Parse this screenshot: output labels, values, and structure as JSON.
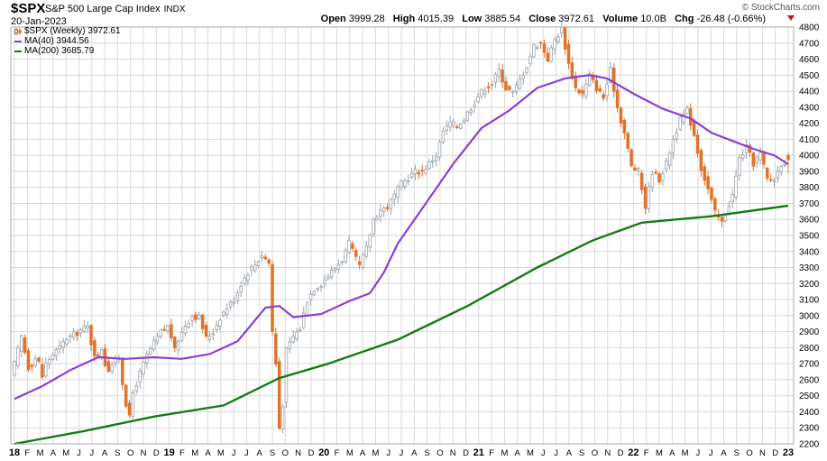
{
  "header": {
    "symbol": "$SPX",
    "name": "S&P 500 Large Cap Index",
    "exchange": "INDX",
    "date": "20-Jan-2023",
    "open_label": "Open",
    "open": "3999.28",
    "high_label": "High",
    "high": "4015.39",
    "low_label": "Low",
    "low": "3885.54",
    "close_label": "Close",
    "close": "3972.61",
    "volume_label": "Volume",
    "volume": "10.0B",
    "chg_label": "Chg",
    "chg": "-26.48 (-0.66%)",
    "brand": "© StockCharts.com"
  },
  "legend": {
    "price": "$SPX (Weekly) 3972.61",
    "ma40": "MA(40) 3944.56",
    "ma200": "MA(200) 3685.79"
  },
  "colors": {
    "up": "#9aa3ad",
    "down": "#e1722a",
    "ma40": "#8c3fd1",
    "ma200": "#157a15",
    "grid": "#d9d9d9"
  },
  "chart_data": {
    "type": "candlestick",
    "interval": "weekly",
    "ylim": [
      2200,
      4800
    ],
    "yticks": [
      2200,
      2300,
      2400,
      2500,
      2600,
      2700,
      2800,
      2900,
      3000,
      3100,
      3200,
      3300,
      3400,
      3500,
      3600,
      3700,
      3800,
      3900,
      4000,
      4100,
      4200,
      4300,
      4400,
      4500,
      4600,
      4700,
      4800
    ],
    "xticks": [
      "18",
      "F",
      "M",
      "A",
      "M",
      "J",
      "J",
      "A",
      "S",
      "O",
      "N",
      "D",
      "19",
      "F",
      "M",
      "A",
      "M",
      "J",
      "J",
      "A",
      "S",
      "O",
      "N",
      "D",
      "20",
      "F",
      "M",
      "A",
      "M",
      "J",
      "J",
      "A",
      "S",
      "O",
      "N",
      "D",
      "21",
      "F",
      "M",
      "A",
      "M",
      "J",
      "J",
      "A",
      "S",
      "O",
      "N",
      "D",
      "22",
      "F",
      "M",
      "A",
      "M",
      "J",
      "J",
      "A",
      "S",
      "O",
      "N",
      "D",
      "23"
    ],
    "price_path": [
      [
        0,
        2700
      ],
      [
        2,
        2870
      ],
      [
        4.3,
        2650
      ],
      [
        5,
        2700
      ],
      [
        6.5,
        2750
      ],
      [
        8,
        2620
      ],
      [
        9,
        2700
      ],
      [
        11,
        2760
      ],
      [
        13,
        2800
      ],
      [
        15,
        2860
      ],
      [
        17,
        2880
      ],
      [
        19,
        2910
      ],
      [
        21,
        2930
      ],
      [
        22.5,
        2780
      ],
      [
        24,
        2740
      ],
      [
        25,
        2800
      ],
      [
        26.5,
        2650
      ],
      [
        28,
        2700
      ],
      [
        30,
        2740
      ],
      [
        31.5,
        2500
      ],
      [
        33,
        2360
      ],
      [
        34,
        2520
      ],
      [
        36,
        2640
      ],
      [
        38,
        2750
      ],
      [
        40,
        2830
      ],
      [
        42,
        2900
      ],
      [
        44,
        2930
      ],
      [
        45,
        2870
      ],
      [
        46,
        2780
      ],
      [
        47,
        2850
      ],
      [
        49,
        2940
      ],
      [
        51,
        3000
      ],
      [
        53,
        2990
      ],
      [
        55,
        2860
      ],
      [
        57,
        2900
      ],
      [
        59,
        2990
      ],
      [
        61,
        3050
      ],
      [
        63,
        3100
      ],
      [
        65,
        3200
      ],
      [
        67,
        3270
      ],
      [
        69,
        3320
      ],
      [
        71,
        3380
      ],
      [
        73,
        3330
      ],
      [
        74,
        2900
      ],
      [
        75,
        2700
      ],
      [
        76,
        2300
      ],
      [
        77,
        2450
      ],
      [
        78,
        2780
      ],
      [
        80,
        2870
      ],
      [
        82,
        2920
      ],
      [
        84,
        3100
      ],
      [
        86,
        3170
      ],
      [
        88,
        3200
      ],
      [
        90,
        3250
      ],
      [
        92,
        3300
      ],
      [
        94,
        3350
      ],
      [
        96,
        3450
      ],
      [
        98,
        3350
      ],
      [
        99,
        3310
      ],
      [
        101,
        3420
      ],
      [
        103,
        3600
      ],
      [
        105,
        3660
      ],
      [
        107,
        3680
      ],
      [
        109,
        3750
      ],
      [
        111,
        3820
      ],
      [
        113,
        3860
      ],
      [
        115,
        3900
      ],
      [
        117,
        3900
      ],
      [
        119,
        3950
      ],
      [
        121,
        4000
      ],
      [
        123,
        4150
      ],
      [
        125,
        4200
      ],
      [
        127,
        4180
      ],
      [
        129,
        4230
      ],
      [
        131,
        4300
      ],
      [
        133,
        4370
      ],
      [
        135,
        4420
      ],
      [
        137,
        4450
      ],
      [
        139,
        4530
      ],
      [
        141,
        4420
      ],
      [
        143,
        4390
      ],
      [
        145,
        4470
      ],
      [
        147,
        4560
      ],
      [
        149,
        4680
      ],
      [
        151,
        4700
      ],
      [
        153,
        4600
      ],
      [
        155,
        4720
      ],
      [
        157,
        4790
      ],
      [
        159,
        4570
      ],
      [
        161,
        4420
      ],
      [
        163,
        4380
      ],
      [
        165,
        4500
      ],
      [
        167,
        4420
      ],
      [
        169,
        4360
      ],
      [
        171,
        4530
      ],
      [
        173,
        4300
      ],
      [
        175,
        4140
      ],
      [
        177,
        3930
      ],
      [
        179,
        3900
      ],
      [
        181,
        3680
      ],
      [
        183,
        3900
      ],
      [
        185,
        3850
      ],
      [
        187,
        3950
      ],
      [
        189,
        4100
      ],
      [
        191,
        4220
      ],
      [
        193,
        4280
      ],
      [
        195,
        4130
      ],
      [
        197,
        3920
      ],
      [
        199,
        3790
      ],
      [
        201,
        3640
      ],
      [
        203,
        3580
      ],
      [
        204,
        3640
      ],
      [
        206,
        3750
      ],
      [
        208,
        3980
      ],
      [
        210,
        4050
      ],
      [
        212,
        3950
      ],
      [
        214,
        4010
      ],
      [
        216,
        3850
      ],
      [
        218,
        3850
      ],
      [
        220,
        3950
      ],
      [
        222,
        3972.61
      ]
    ],
    "ma40_path": [
      [
        0,
        2480
      ],
      [
        8,
        2560
      ],
      [
        16,
        2660
      ],
      [
        24,
        2740
      ],
      [
        32,
        2730
      ],
      [
        40,
        2740
      ],
      [
        48,
        2730
      ],
      [
        56,
        2760
      ],
      [
        64,
        2840
      ],
      [
        72,
        3050
      ],
      [
        76,
        3060
      ],
      [
        80,
        2990
      ],
      [
        88,
        3010
      ],
      [
        96,
        3090
      ],
      [
        102,
        3140
      ],
      [
        106,
        3270
      ],
      [
        110,
        3450
      ],
      [
        118,
        3700
      ],
      [
        126,
        3950
      ],
      [
        134,
        4170
      ],
      [
        142,
        4280
      ],
      [
        150,
        4420
      ],
      [
        158,
        4480
      ],
      [
        165,
        4500
      ],
      [
        170,
        4480
      ],
      [
        178,
        4380
      ],
      [
        186,
        4290
      ],
      [
        194,
        4230
      ],
      [
        200,
        4140
      ],
      [
        206,
        4090
      ],
      [
        212,
        4040
      ],
      [
        218,
        4000
      ],
      [
        222,
        3944.56
      ]
    ],
    "ma200_path": [
      [
        0,
        2200
      ],
      [
        20,
        2280
      ],
      [
        40,
        2370
      ],
      [
        60,
        2440
      ],
      [
        76,
        2610
      ],
      [
        90,
        2700
      ],
      [
        110,
        2850
      ],
      [
        130,
        3060
      ],
      [
        150,
        3300
      ],
      [
        166,
        3470
      ],
      [
        180,
        3580
      ],
      [
        200,
        3620
      ],
      [
        222,
        3685.79
      ]
    ],
    "last": {
      "open": 3999.28,
      "high": 4015.39,
      "low": 3885.54,
      "close": 3972.61
    }
  }
}
